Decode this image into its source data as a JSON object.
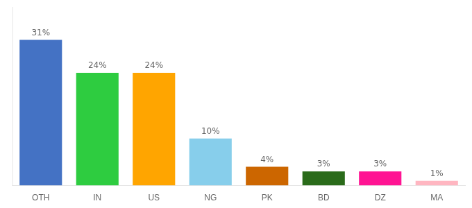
{
  "chart_data": {
    "type": "bar",
    "categories": [
      "OTH",
      "IN",
      "US",
      "NG",
      "PK",
      "BD",
      "DZ",
      "MA"
    ],
    "values": [
      31,
      24,
      24,
      10,
      4,
      3,
      3,
      1
    ],
    "value_labels": [
      "31%",
      "24%",
      "24%",
      "10%",
      "4%",
      "3%",
      "3%",
      "1%"
    ],
    "colors": [
      "#4472C4",
      "#2ECC40",
      "#FFA500",
      "#87CEEB",
      "#CC6600",
      "#2A6B1A",
      "#FF1493",
      "#FFB6C1"
    ],
    "ylim": [
      0,
      38
    ],
    "data_labels": true,
    "tick_labels": "x",
    "grid": false
  }
}
